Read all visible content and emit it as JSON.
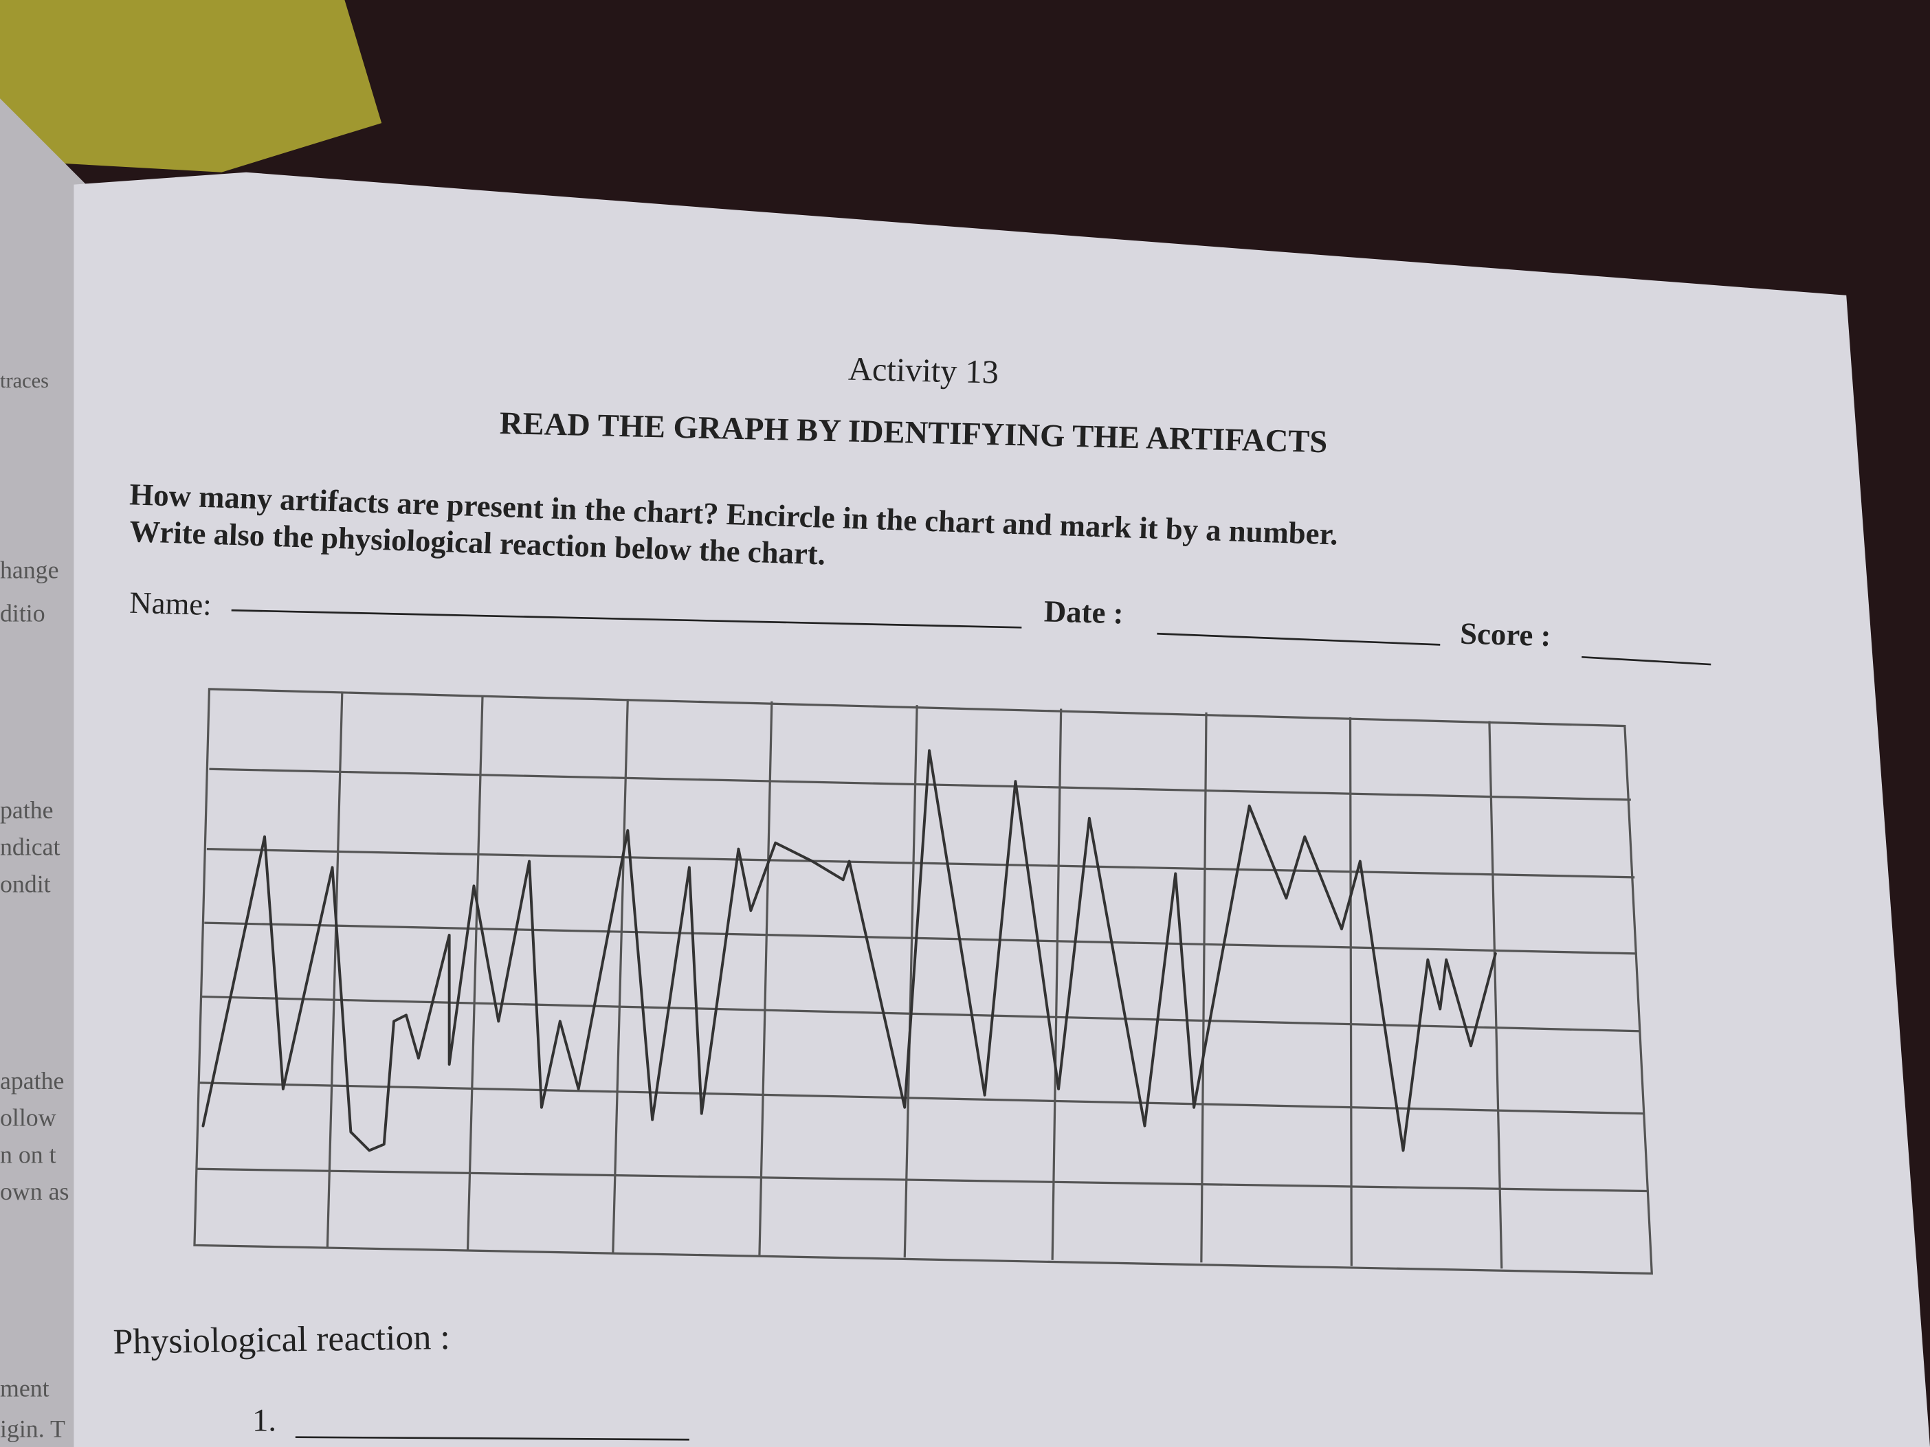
{
  "header": {
    "activity": "Activity 13",
    "title": "READ THE GRAPH BY IDENTIFYING THE ARTIFACTS"
  },
  "instructions": [
    "How many artifacts are present in the chart? Encircle in the chart and mark it by a number.",
    "Write also the physiological reaction below the chart."
  ],
  "fields": {
    "name": "Name:",
    "date": "Date :",
    "score": "Score :"
  },
  "footer": {
    "label": "Physiological reaction :",
    "items": [
      "1."
    ]
  },
  "left_page": [
    "traces",
    "hange",
    "ditio",
    "pathe",
    "ndicat",
    "ondit",
    "apathe",
    "ollow",
    "n on t",
    "own as",
    "ment",
    "igin. T"
  ]
}
